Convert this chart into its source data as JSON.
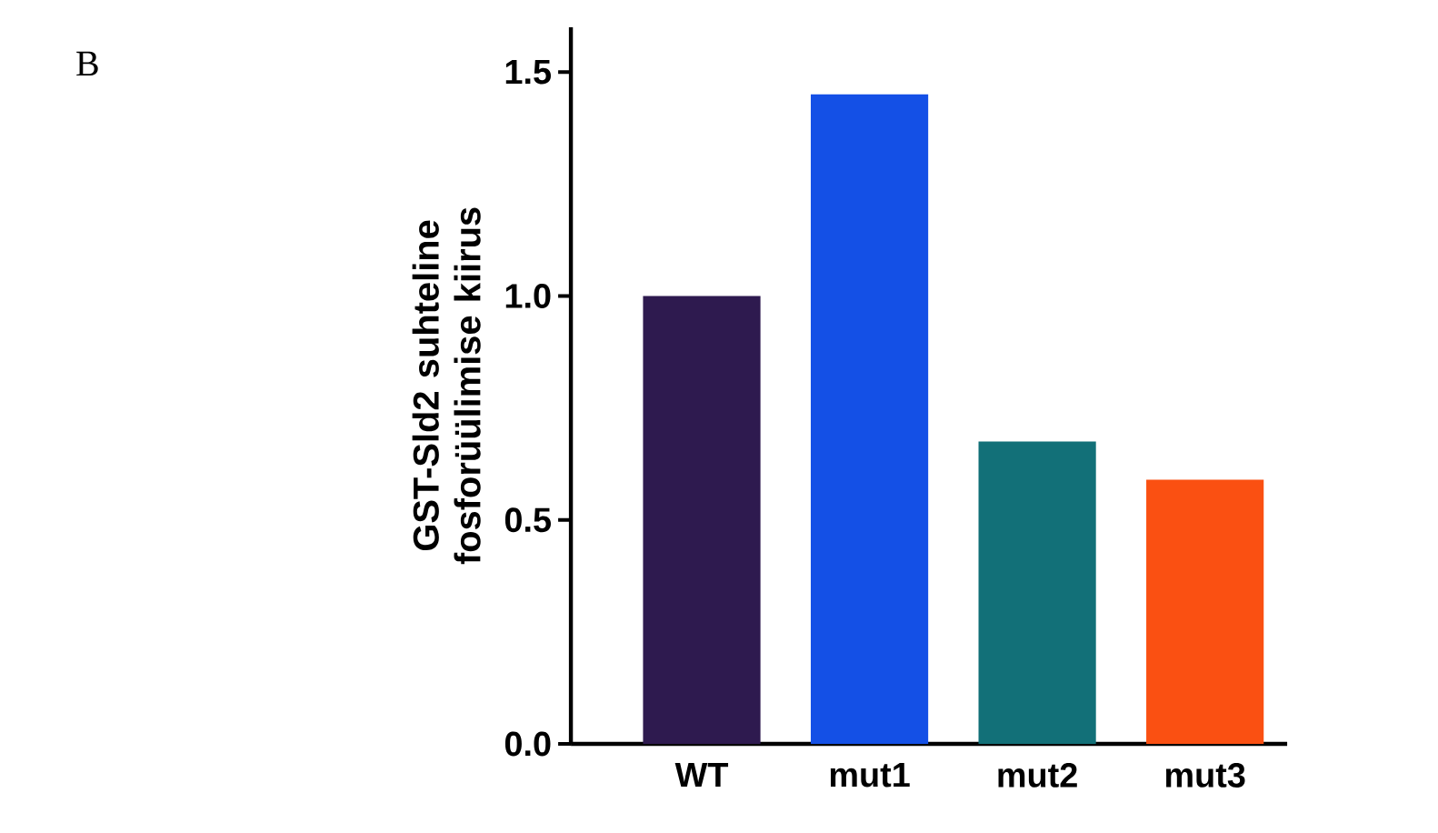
{
  "chart_data": {
    "type": "bar",
    "ylabel": "GST-Sld2 suhteline fosforüülimise kiirus",
    "categories": [
      "WT",
      "mut1",
      "mut2",
      "mut3"
    ],
    "values": [
      1.0,
      1.45,
      0.675,
      0.59
    ],
    "colors": [
      "#2e1a4f",
      "#1450e6",
      "#127078",
      "#fa5012"
    ],
    "ylim": [
      0,
      1.6
    ],
    "yticks": [
      {
        "value": 0,
        "label": "0.0"
      },
      0.5,
      {
        "value": 1,
        "label": "1.0"
      },
      1.5
    ],
    "annotations": [
      "B"
    ]
  }
}
